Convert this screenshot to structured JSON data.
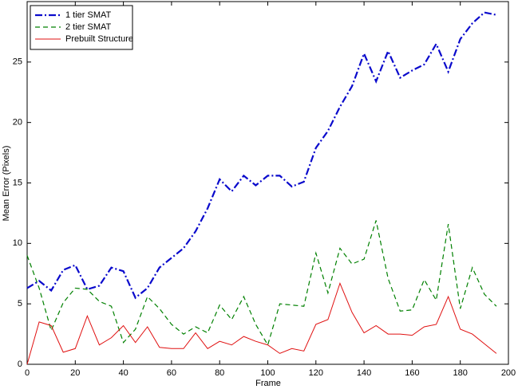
{
  "chart_data": {
    "type": "line",
    "xlabel": "Frame",
    "ylabel": "Mean Error (Pixels)",
    "x": [
      0,
      5,
      10,
      15,
      20,
      25,
      30,
      35,
      40,
      45,
      50,
      55,
      60,
      65,
      70,
      75,
      80,
      85,
      90,
      95,
      100,
      105,
      110,
      115,
      120,
      125,
      130,
      135,
      140,
      145,
      150,
      155,
      160,
      165,
      170,
      175,
      180,
      185,
      190,
      195
    ],
    "series": [
      {
        "name": "1 tier SMAT",
        "color": "#0a0acc",
        "linestyle": "dashdot",
        "values": [
          6.3,
          6.9,
          6.1,
          7.8,
          8.2,
          6.2,
          6.5,
          8.0,
          7.7,
          5.5,
          6.3,
          8.0,
          8.8,
          9.6,
          11.0,
          12.9,
          15.3,
          14.3,
          15.6,
          14.8,
          15.6,
          15.6,
          14.7,
          15.1,
          17.9,
          19.3,
          21.3,
          23.0,
          25.7,
          23.4,
          25.9,
          23.7,
          24.3,
          24.8,
          26.5,
          24.2,
          26.9,
          28.2,
          29.1,
          28.9
        ]
      },
      {
        "name": "2 tier SMAT",
        "color": "#008000",
        "linestyle": "dashed",
        "values": [
          9.0,
          6.3,
          2.8,
          5.1,
          6.3,
          6.2,
          5.2,
          4.8,
          1.8,
          2.9,
          5.6,
          4.6,
          3.3,
          2.5,
          3.1,
          2.6,
          4.9,
          3.7,
          5.6,
          3.3,
          1.6,
          5.0,
          4.9,
          4.8,
          9.2,
          5.9,
          9.6,
          8.3,
          8.7,
          11.9,
          7.1,
          4.4,
          4.5,
          7.0,
          5.3,
          11.6,
          4.6,
          8.0,
          5.8,
          4.8
        ]
      },
      {
        "name": "Prebuilt Structure",
        "color": "#e01010",
        "linestyle": "solid",
        "values": [
          0,
          3.5,
          3.2,
          1.0,
          1.3,
          4.0,
          1.6,
          2.2,
          3.2,
          1.8,
          3.1,
          1.4,
          1.3,
          1.3,
          2.6,
          1.3,
          1.9,
          1.6,
          2.3,
          1.9,
          1.6,
          0.9,
          1.3,
          1.1,
          3.3,
          3.7,
          6.7,
          4.3,
          2.6,
          3.2,
          2.5,
          2.5,
          2.4,
          3.1,
          3.3,
          5.6,
          2.9,
          2.5,
          1.7,
          0.9
        ]
      }
    ],
    "xlim": [
      0,
      200
    ],
    "xticks": [
      0,
      20,
      40,
      60,
      80,
      100,
      120,
      140,
      160,
      180,
      200
    ],
    "ylim": [
      0,
      30
    ],
    "yticks": [
      0,
      5,
      10,
      15,
      20,
      25
    ],
    "grid": false,
    "legend": "upper left"
  }
}
